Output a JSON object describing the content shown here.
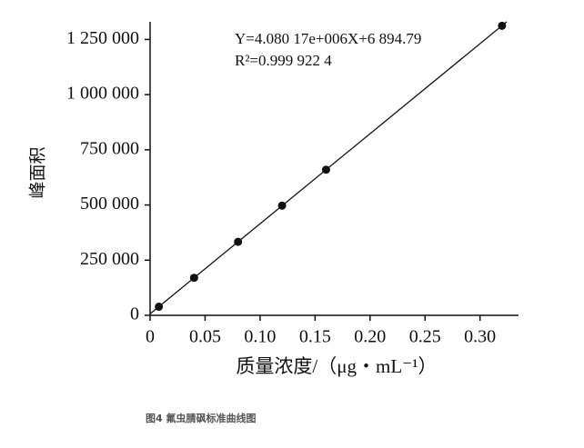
{
  "chart_data": {
    "type": "scatter",
    "x_label": "质量浓度/（μg・mL⁻¹）",
    "y_label": "峰面积",
    "caption": "图4 氟虫腈砜标准曲线图",
    "annotations": [
      "Y=4.080 17e+006X+6 894.79",
      "R²=0.999 922 4"
    ],
    "fit_line": {
      "slope": 4080170,
      "intercept": 6894.79
    },
    "x": [
      0.008,
      0.04,
      0.08,
      0.12,
      0.16,
      0.32
    ],
    "values": [
      39000,
      170000,
      333000,
      497000,
      660000,
      1312000
    ],
    "color": "#111111",
    "xlim": [
      0,
      0.335
    ],
    "ylim": [
      0,
      1330000
    ],
    "xticks": [
      0,
      0.05,
      {
        "value": 0.1,
        "label": "0.10"
      },
      0.15,
      {
        "value": 0.2,
        "label": "0.20"
      },
      0.25,
      {
        "value": 0.3,
        "label": "0.30"
      }
    ],
    "yticks": [
      0,
      {
        "value": 250000,
        "label": "250 000"
      },
      {
        "value": 500000,
        "label": "500 000"
      },
      {
        "value": 750000,
        "label": "750 000"
      },
      {
        "value": 1000000,
        "label": "1 000 000"
      },
      {
        "value": 1250000,
        "label": "1 250 000"
      }
    ]
  }
}
